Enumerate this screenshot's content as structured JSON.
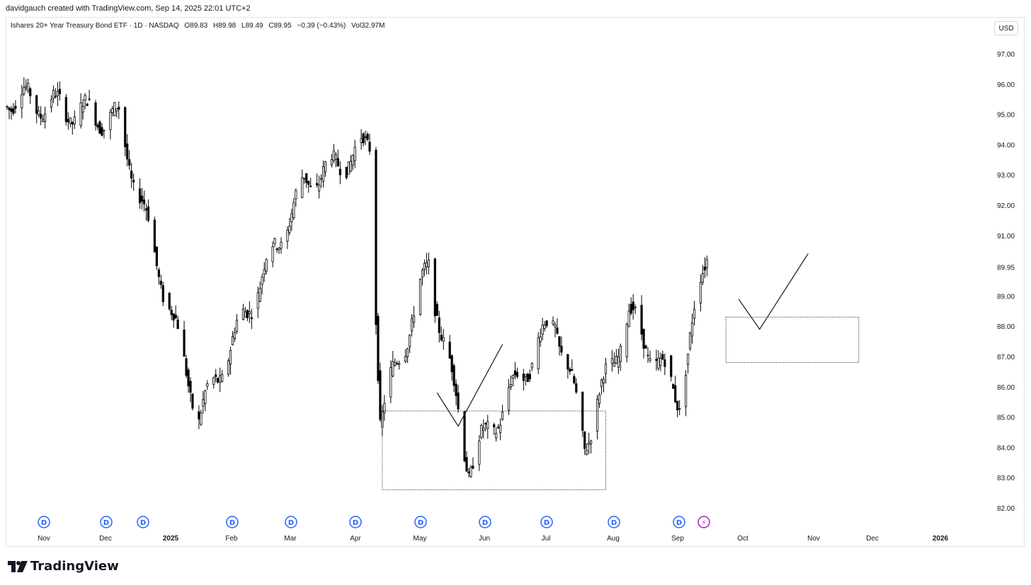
{
  "header": {
    "attribution": "davidgauch created with TradingView.com, Sep 14, 2025 22:01 UTC+2"
  },
  "legend": {
    "symbol": "Ishares 20+ Year Treasury Bond ETF · 1D · NASDAQ",
    "open": "O89.83",
    "high": "H89.98",
    "low": "L89.49",
    "close": "C89.95",
    "change": "−0.39 (−0.43%)",
    "volume": "Vol32.97M"
  },
  "currency": "USD",
  "brand": {
    "name": "TradingView"
  },
  "colors": {
    "candle": "#000000",
    "grid_text": "#131722",
    "event_dividend": "#2962ff",
    "event_other": "#9c27b0",
    "drawing": "#131722"
  },
  "chart_data": {
    "type": "candlestick",
    "ylim": [
      81.6,
      98
    ],
    "y_ticks": [
      "97.00",
      "96.00",
      "95.00",
      "94.00",
      "93.00",
      "92.00",
      "91.00",
      "89.95",
      "89.00",
      "88.00",
      "87.00",
      "86.00",
      "85.00",
      "84.00",
      "83.00",
      "82.00"
    ],
    "last_price_label": "89.95",
    "x_labels": [
      "Nov",
      "Dec",
      "2025",
      "Feb",
      "Mar",
      "Apr",
      "May",
      "Jun",
      "Jul",
      "Aug",
      "Sep",
      "Oct",
      "Nov",
      "Dec",
      "2026"
    ],
    "events": [
      {
        "label": "D",
        "kind": "dividend"
      },
      {
        "label": "D",
        "kind": "dividend"
      },
      {
        "label": "D",
        "kind": "dividend"
      },
      {
        "label": "D",
        "kind": "dividend"
      },
      {
        "label": "D",
        "kind": "dividend"
      },
      {
        "label": "D",
        "kind": "dividend"
      },
      {
        "label": "D",
        "kind": "dividend"
      },
      {
        "label": "D",
        "kind": "dividend"
      },
      {
        "label": "D",
        "kind": "dividend"
      },
      {
        "label": "D",
        "kind": "dividend"
      },
      {
        "label": "D",
        "kind": "dividend"
      },
      {
        "label": "⚡",
        "kind": "other"
      }
    ],
    "key_points": [
      {
        "date": "2024-10-14",
        "price": 95.6
      },
      {
        "date": "2024-12-06",
        "price": 94.8
      },
      {
        "date": "2025-01-13",
        "price": 85.0
      },
      {
        "date": "2025-03-04",
        "price": 92.7
      },
      {
        "date": "2025-04-04",
        "price": 94.0
      },
      {
        "date": "2025-04-09",
        "price": 85.0
      },
      {
        "date": "2025-05-02",
        "price": 90.0
      },
      {
        "date": "2025-05-21",
        "price": 83.4
      },
      {
        "date": "2025-07-01",
        "price": 88.3
      },
      {
        "date": "2025-07-15",
        "price": 84.2
      },
      {
        "date": "2025-08-05",
        "price": 88.4
      },
      {
        "date": "2025-08-29",
        "price": 85.6
      },
      {
        "date": "2025-09-11",
        "price": 90.5
      },
      {
        "date": "2025-09-12",
        "price": 89.95
      }
    ],
    "annotations": [
      {
        "type": "rectangle",
        "label": "",
        "from": {
          "date": "2025-04-10",
          "price": 85.2
        },
        "to": {
          "date": "2025-07-25",
          "price": 82.6
        }
      },
      {
        "type": "path",
        "label": "",
        "points": [
          {
            "date": "2025-05-06",
            "price": 85.8
          },
          {
            "date": "2025-05-16",
            "price": 84.7
          },
          {
            "date": "2025-06-06",
            "price": 87.4
          }
        ]
      },
      {
        "type": "rectangle",
        "label": "",
        "from": {
          "date": "2025-09-20",
          "price": 88.3
        },
        "to": {
          "date": "2025-11-22",
          "price": 86.8
        }
      },
      {
        "type": "path",
        "label": "",
        "points": [
          {
            "date": "2025-09-26",
            "price": 88.9
          },
          {
            "date": "2025-10-06",
            "price": 87.9
          },
          {
            "date": "2025-10-29",
            "price": 90.4
          }
        ]
      }
    ]
  }
}
